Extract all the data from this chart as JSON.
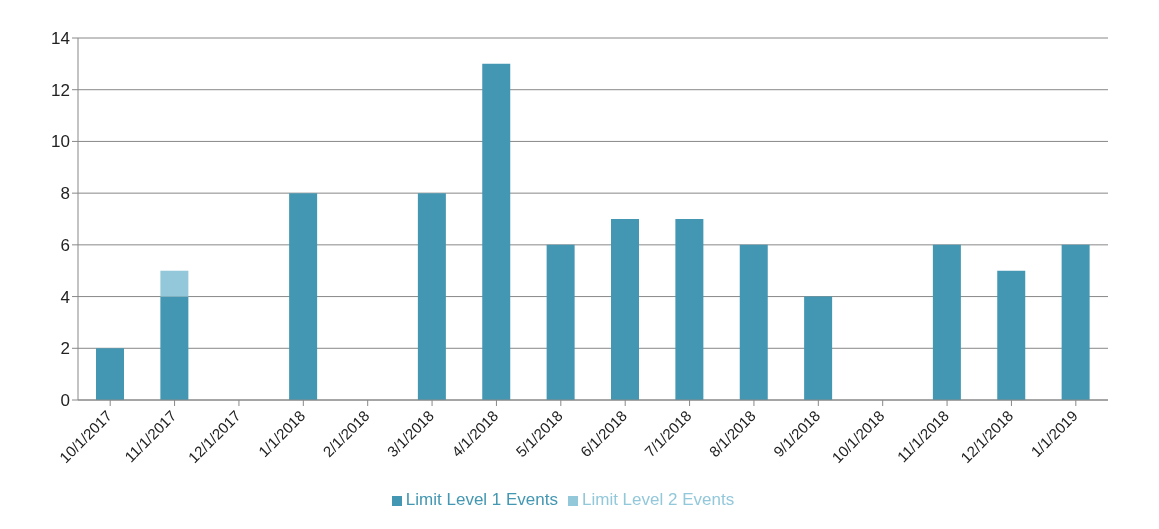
{
  "chart_data": {
    "type": "bar",
    "stacked": true,
    "categories": [
      "10/1/2017",
      "11/1/2017",
      "12/1/2017",
      "1/1/2018",
      "2/1/2018",
      "3/1/2018",
      "4/1/2018",
      "5/1/2018",
      "6/1/2018",
      "7/1/2018",
      "8/1/2018",
      "9/1/2018",
      "10/1/2018",
      "11/1/2018",
      "12/1/2018",
      "1/1/2019"
    ],
    "series": [
      {
        "name": "Limit Level 1 Events",
        "color": "#4397b2",
        "values": [
          2,
          4,
          0,
          8,
          0,
          8,
          13,
          6,
          7,
          7,
          6,
          4,
          0,
          6,
          5,
          6
        ]
      },
      {
        "name": "Limit Level 2 Events",
        "color": "#92c8da",
        "values": [
          0,
          1,
          0,
          0,
          0,
          0,
          0,
          0,
          0,
          0,
          0,
          0,
          0,
          0,
          0,
          0
        ]
      }
    ],
    "ylim": [
      0,
      14
    ],
    "yticks": [
      0,
      2,
      4,
      6,
      8,
      10,
      12,
      14
    ],
    "grid": "y",
    "legend": "bottom"
  }
}
